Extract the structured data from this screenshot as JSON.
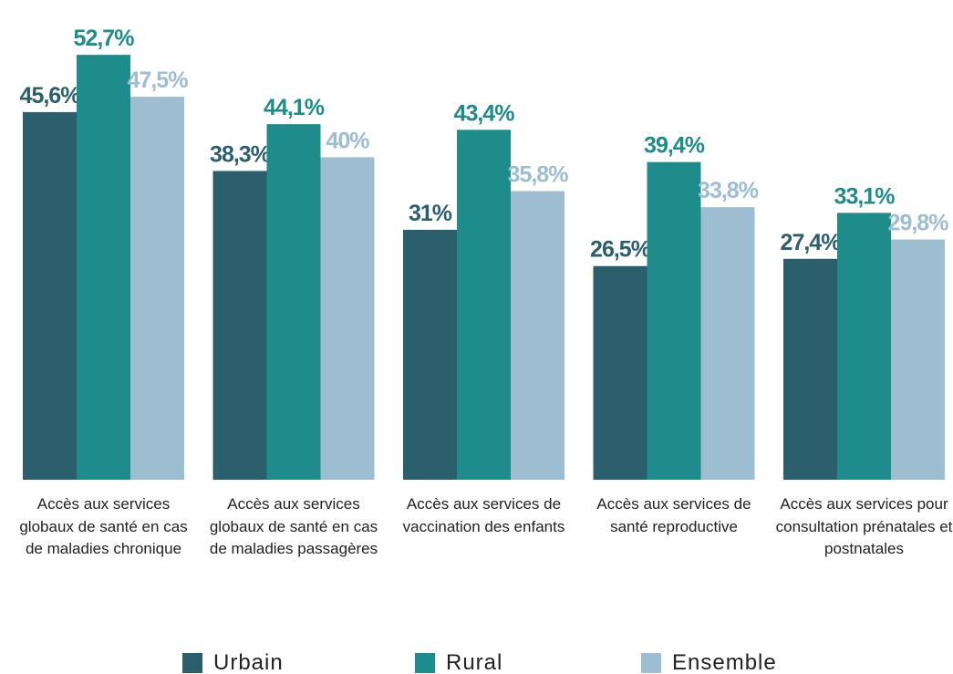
{
  "chart_data": {
    "type": "bar",
    "categories": [
      "Accès aux services globaux de santé en cas de maladies chronique",
      "Accès aux services globaux de santé en cas de maladies passagères",
      "Accès aux services de vaccination des enfants",
      "Accès aux services de santé reproductive",
      "Accès aux services pour consultation prénatales et postnatales"
    ],
    "series": [
      {
        "name": "Urbain",
        "color": "#2b5f6e",
        "values": [
          45.6,
          38.3,
          31,
          26.5,
          27.4
        ],
        "value_labels": [
          "45,6%",
          "38,3%",
          "31%",
          "26,5%",
          "27,4%"
        ]
      },
      {
        "name": "Rural",
        "color": "#1e8c8a",
        "values": [
          52.7,
          44.1,
          43.4,
          39.4,
          33.1
        ],
        "value_labels": [
          "52,7%",
          "44,1%",
          "43,4%",
          "39,4%",
          "33,1%"
        ]
      },
      {
        "name": "Ensemble",
        "color": "#9dbdd0",
        "values": [
          47.5,
          40,
          35.8,
          33.8,
          29.8
        ],
        "value_labels": [
          "47,5%",
          "40%",
          "35,8%",
          "33,8%",
          "29,8%"
        ]
      }
    ]
  }
}
